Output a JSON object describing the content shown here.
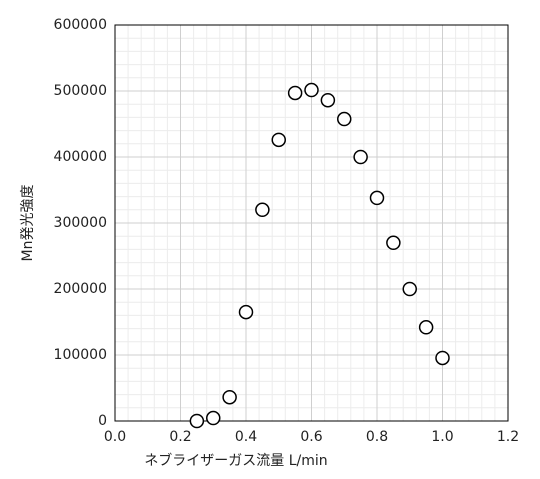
{
  "chart_data": {
    "type": "scatter",
    "xlabel": "ネブライザーガス流量 L/min",
    "ylabel": "Mn発光強度",
    "x": [
      0.25,
      0.3,
      0.35,
      0.4,
      0.45,
      0.5,
      0.55,
      0.6,
      0.65,
      0.7,
      0.75,
      0.8,
      0.85,
      0.9,
      0.95,
      1.0
    ],
    "series": [
      {
        "values": [
          0,
          4500,
          36000,
          165000,
          320000,
          426000,
          497000,
          501500,
          486000,
          457500,
          400000,
          338000,
          270000,
          200000,
          142000,
          95500
        ],
        "color": "#000000"
      }
    ],
    "xlim": [
      0,
      1.2
    ],
    "ylim": [
      0,
      600000
    ],
    "xticks": [
      {
        "value": 0,
        "label": "0.0"
      },
      0.2,
      0.4,
      0.6,
      0.8,
      {
        "value": 1,
        "label": "1.0"
      },
      1.2
    ],
    "yticks": [
      0,
      100000,
      200000,
      300000,
      400000,
      500000,
      600000
    ],
    "grid": true
  }
}
